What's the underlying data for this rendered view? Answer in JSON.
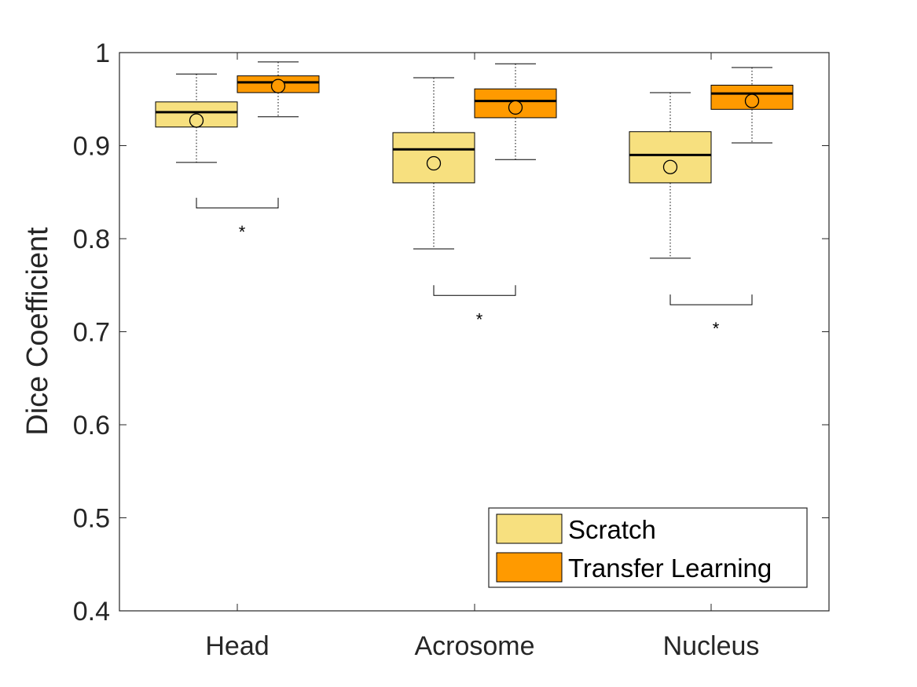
{
  "chart_data": {
    "type": "boxplot",
    "ylabel": "Dice Coefficient",
    "ylim": [
      0.4,
      1.0
    ],
    "yticks": [
      "0.4",
      "0.5",
      "0.6",
      "0.7",
      "0.8",
      "0.9",
      "1"
    ],
    "categories": [
      "Head",
      "Acrosome",
      "Nucleus"
    ],
    "grid": false,
    "legend_position": "bottom-right",
    "series": [
      {
        "name": "Scratch",
        "color": "#F7E07F",
        "boxes": [
          {
            "whisker_low": 0.882,
            "q1": 0.92,
            "median": 0.936,
            "q3": 0.947,
            "whisker_high": 0.977,
            "mean": 0.927
          },
          {
            "whisker_low": 0.789,
            "q1": 0.86,
            "median": 0.896,
            "q3": 0.914,
            "whisker_high": 0.973,
            "mean": 0.881
          },
          {
            "whisker_low": 0.779,
            "q1": 0.86,
            "median": 0.89,
            "q3": 0.915,
            "whisker_high": 0.957,
            "mean": 0.877
          }
        ]
      },
      {
        "name": "Transfer Learning",
        "color": "#FF9A00",
        "boxes": [
          {
            "whisker_low": 0.931,
            "q1": 0.957,
            "median": 0.968,
            "q3": 0.975,
            "whisker_high": 0.99,
            "mean": 0.964
          },
          {
            "whisker_low": 0.885,
            "q1": 0.93,
            "median": 0.948,
            "q3": 0.961,
            "whisker_high": 0.988,
            "mean": 0.941
          },
          {
            "whisker_low": 0.903,
            "q1": 0.939,
            "median": 0.956,
            "q3": 0.965,
            "whisker_high": 0.984,
            "mean": 0.948
          }
        ]
      }
    ],
    "significance": [
      {
        "category": "Head",
        "bracket_y": 0.833,
        "label": "*"
      },
      {
        "category": "Acrosome",
        "bracket_y": 0.739,
        "label": "*"
      },
      {
        "category": "Nucleus",
        "bracket_y": 0.729,
        "label": "*"
      }
    ]
  }
}
